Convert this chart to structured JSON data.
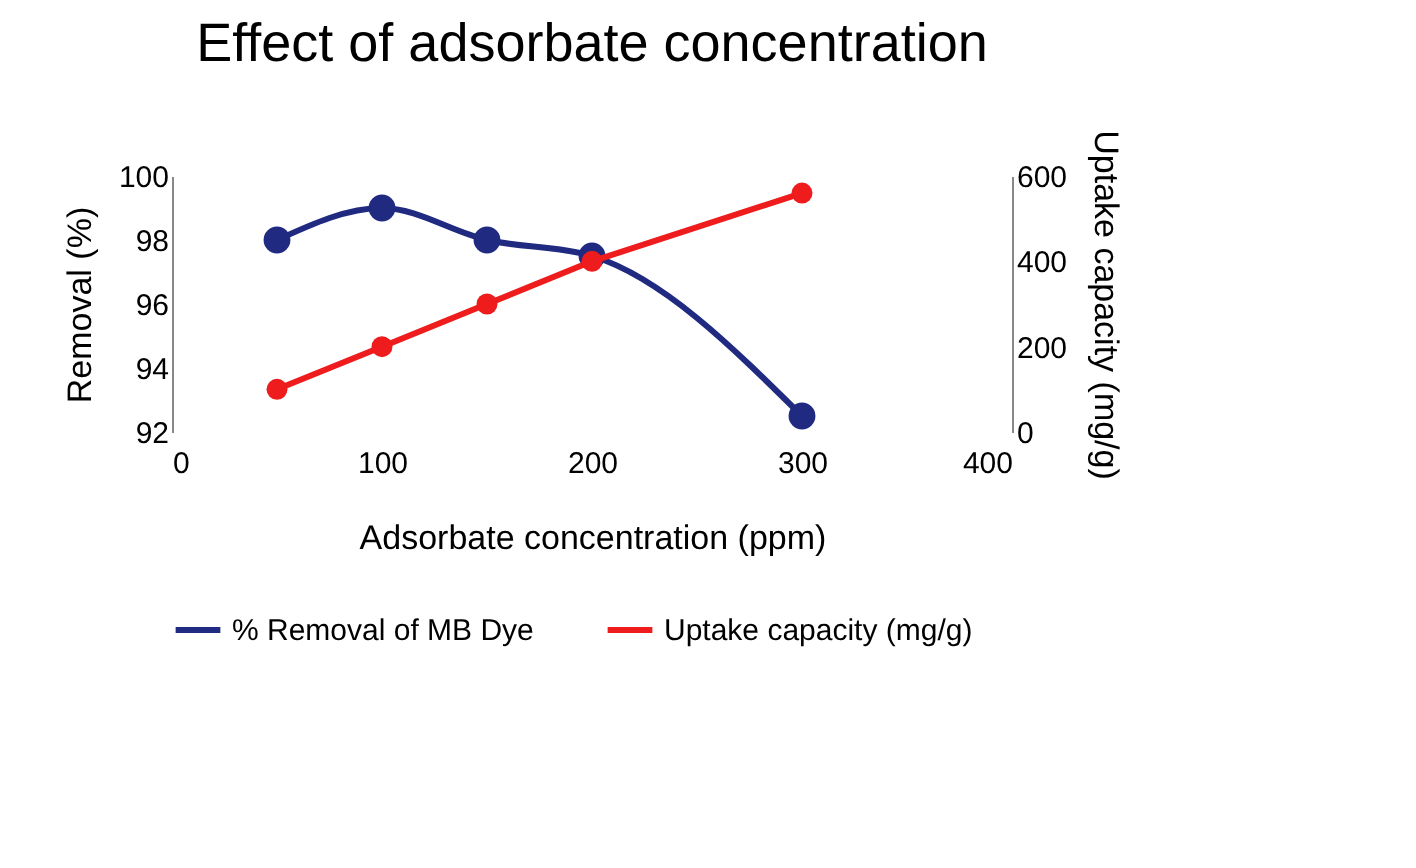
{
  "chart_data": {
    "type": "line",
    "title": "Effect of adsorbate concentration",
    "xlabel": "Adsorbate concentration (ppm)",
    "ylabel": "Removal (%)",
    "y2label": "Uptake capacity (mg/g)",
    "x": [
      50,
      100,
      150,
      200,
      300
    ],
    "series": [
      {
        "name": "% Removal of MB Dye",
        "color": "#1f2a80",
        "values": [
          98,
          99,
          98,
          97.5,
          92.5
        ]
      },
      {
        "name": "Uptake capacity (mg/g)",
        "color": "#ee1c1c",
        "values": [
          100,
          200,
          300,
          400,
          560
        ],
        "axis": "y2"
      }
    ],
    "xlim": [
      0,
      400
    ],
    "xticks": [
      0,
      100,
      200,
      300,
      400
    ],
    "ylim": [
      92,
      100
    ],
    "yticks": [
      92,
      94,
      96,
      98,
      100
    ],
    "y2lim": [
      0,
      600
    ],
    "y2ticks": [
      0,
      200,
      400,
      600
    ],
    "marker": "circle",
    "legend": "bottom",
    "grid": false
  }
}
